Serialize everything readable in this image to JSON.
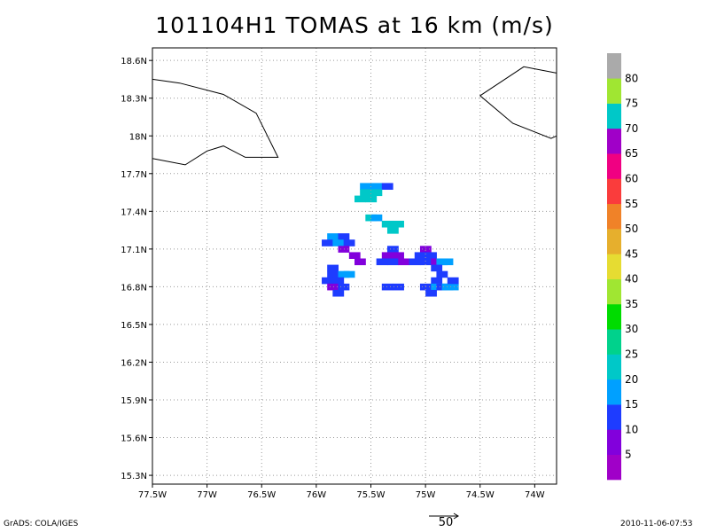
{
  "chart_data": {
    "type": "heatmap",
    "title": "101104H1 TOMAS at 16 km (m/s)",
    "x_ticks": [
      "77.5W",
      "77W",
      "76.5W",
      "76W",
      "75.5W",
      "75W",
      "74.5W",
      "74W"
    ],
    "y_ticks": [
      "18.6N",
      "18.3N",
      "18N",
      "17.7N",
      "17.4N",
      "17.1N",
      "16.8N",
      "16.5N",
      "16.2N",
      "15.9N",
      "15.6N",
      "15.3N"
    ],
    "xlim": [
      -77.5,
      -73.8
    ],
    "ylim": [
      15.23,
      18.7
    ],
    "grid": true,
    "colorbar": {
      "labels": [
        "5",
        "10",
        "15",
        "20",
        "25",
        "30",
        "35",
        "40",
        "45",
        "50",
        "55",
        "60",
        "65",
        "70",
        "75",
        "80"
      ],
      "colors": [
        "#a000c8",
        "#8200dc",
        "#1e3cff",
        "#00a0ff",
        "#00c8c8",
        "#00d28c",
        "#00dc00",
        "#a0e632",
        "#e6dc32",
        "#e6af2d",
        "#f08228",
        "#fa3c3c",
        "#f00082",
        "#a000c8",
        "#00c8c8",
        "#a0e632",
        "#aaaaaa"
      ]
    },
    "wind_cells": [
      {
        "lon": -75.55,
        "lat": 17.6,
        "speed": 15
      },
      {
        "lon": -75.45,
        "lat": 17.6,
        "speed": 15
      },
      {
        "lon": -75.35,
        "lat": 17.6,
        "speed": 10
      },
      {
        "lon": -75.55,
        "lat": 17.55,
        "speed": 20
      },
      {
        "lon": -75.45,
        "lat": 17.55,
        "speed": 20
      },
      {
        "lon": -75.6,
        "lat": 17.5,
        "speed": 20
      },
      {
        "lon": -75.5,
        "lat": 17.5,
        "speed": 20
      },
      {
        "lon": -75.5,
        "lat": 17.35,
        "speed": 20
      },
      {
        "lon": -75.45,
        "lat": 17.35,
        "speed": 15
      },
      {
        "lon": -75.35,
        "lat": 17.3,
        "speed": 20
      },
      {
        "lon": -75.25,
        "lat": 17.3,
        "speed": 20
      },
      {
        "lon": -75.3,
        "lat": 17.25,
        "speed": 20
      },
      {
        "lon": -75.85,
        "lat": 17.2,
        "speed": 15
      },
      {
        "lon": -75.75,
        "lat": 17.2,
        "speed": 10
      },
      {
        "lon": -75.9,
        "lat": 17.15,
        "speed": 10
      },
      {
        "lon": -75.8,
        "lat": 17.15,
        "speed": 15
      },
      {
        "lon": -75.7,
        "lat": 17.15,
        "speed": 10
      },
      {
        "lon": -75.75,
        "lat": 17.1,
        "speed": 5
      },
      {
        "lon": -75.65,
        "lat": 17.05,
        "speed": 5
      },
      {
        "lon": -75.6,
        "lat": 17.0,
        "speed": 5
      },
      {
        "lon": -75.3,
        "lat": 17.1,
        "speed": 10
      },
      {
        "lon": -75.35,
        "lat": 17.05,
        "speed": 5
      },
      {
        "lon": -75.25,
        "lat": 17.05,
        "speed": 5
      },
      {
        "lon": -75.4,
        "lat": 17.0,
        "speed": 10
      },
      {
        "lon": -75.3,
        "lat": 17.0,
        "speed": 10
      },
      {
        "lon": -75.2,
        "lat": 17.0,
        "speed": 5
      },
      {
        "lon": -75.0,
        "lat": 17.1,
        "speed": 5
      },
      {
        "lon": -75.05,
        "lat": 17.05,
        "speed": 10
      },
      {
        "lon": -74.95,
        "lat": 17.05,
        "speed": 10
      },
      {
        "lon": -75.1,
        "lat": 17.0,
        "speed": 10
      },
      {
        "lon": -75.0,
        "lat": 17.0,
        "speed": 10
      },
      {
        "lon": -74.9,
        "lat": 17.0,
        "speed": 5
      },
      {
        "lon": -74.85,
        "lat": 17.0,
        "speed": 15
      },
      {
        "lon": -74.8,
        "lat": 17.0,
        "speed": 15
      },
      {
        "lon": -74.9,
        "lat": 16.95,
        "speed": 10
      },
      {
        "lon": -74.85,
        "lat": 16.9,
        "speed": 10
      },
      {
        "lon": -74.9,
        "lat": 16.85,
        "speed": 10
      },
      {
        "lon": -75.0,
        "lat": 16.8,
        "speed": 10
      },
      {
        "lon": -74.9,
        "lat": 16.8,
        "speed": 15
      },
      {
        "lon": -74.85,
        "lat": 16.8,
        "speed": 10
      },
      {
        "lon": -74.8,
        "lat": 16.8,
        "speed": 15
      },
      {
        "lon": -74.75,
        "lat": 16.8,
        "speed": 15
      },
      {
        "lon": -74.75,
        "lat": 16.85,
        "speed": 10
      },
      {
        "lon": -74.95,
        "lat": 16.75,
        "speed": 10
      },
      {
        "lon": -75.85,
        "lat": 16.95,
        "speed": 10
      },
      {
        "lon": -75.85,
        "lat": 16.9,
        "speed": 10
      },
      {
        "lon": -75.75,
        "lat": 16.9,
        "speed": 15
      },
      {
        "lon": -75.7,
        "lat": 16.9,
        "speed": 15
      },
      {
        "lon": -75.9,
        "lat": 16.85,
        "speed": 10
      },
      {
        "lon": -75.8,
        "lat": 16.85,
        "speed": 10
      },
      {
        "lon": -75.85,
        "lat": 16.8,
        "speed": 5
      },
      {
        "lon": -75.75,
        "lat": 16.8,
        "speed": 10
      },
      {
        "lon": -75.8,
        "lat": 16.75,
        "speed": 10
      },
      {
        "lon": -75.35,
        "lat": 16.8,
        "speed": 10
      },
      {
        "lon": -75.25,
        "lat": 16.8,
        "speed": 10
      }
    ],
    "coastlines": [
      [
        [
          -77.5,
          18.45
        ],
        [
          -77.25,
          18.42
        ],
        [
          -76.85,
          18.33
        ],
        [
          -76.55,
          18.18
        ],
        [
          -76.35,
          17.83
        ],
        [
          -76.45,
          17.83
        ],
        [
          -76.65,
          17.83
        ],
        [
          -76.85,
          17.92
        ],
        [
          -77.0,
          17.88
        ],
        [
          -77.2,
          17.77
        ],
        [
          -77.5,
          17.82
        ]
      ],
      [
        [
          -73.8,
          18.5
        ],
        [
          -74.1,
          18.55
        ],
        [
          -74.5,
          18.32
        ],
        [
          -74.2,
          18.1
        ],
        [
          -73.85,
          17.98
        ],
        [
          -73.8,
          18.0
        ]
      ]
    ],
    "reference_vector": {
      "label": "50"
    }
  },
  "footer": {
    "left": "GrADS: COLA/IGES",
    "right": "2010-11-06-07:53"
  }
}
